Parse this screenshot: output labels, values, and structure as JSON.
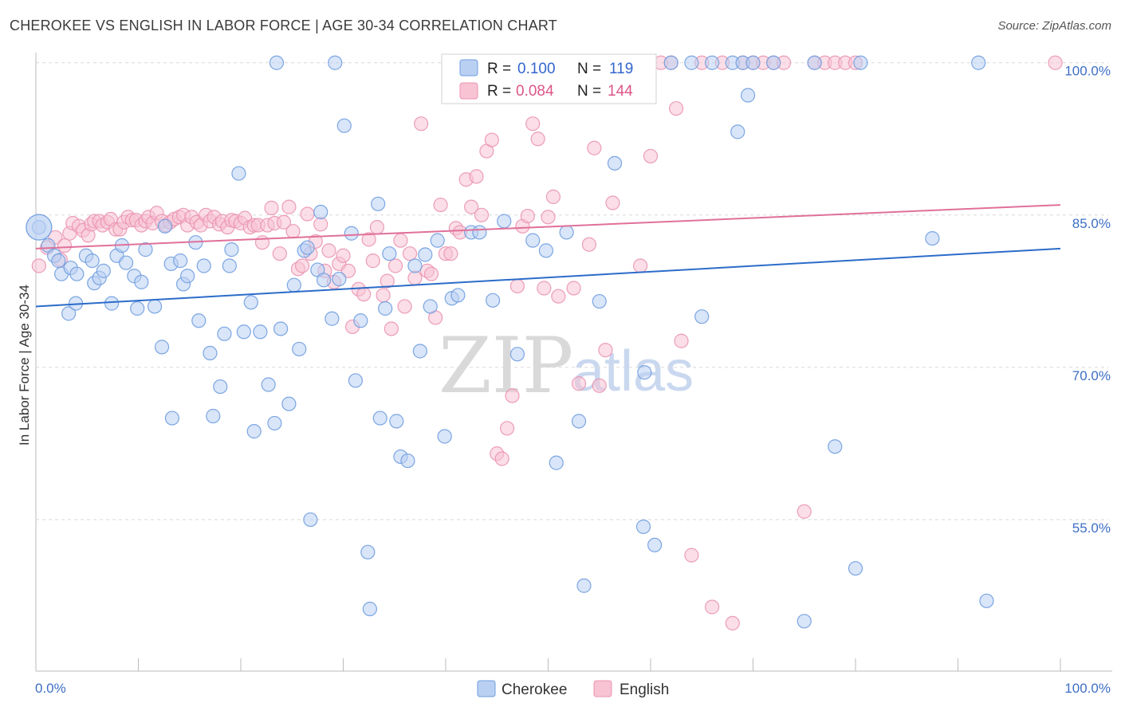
{
  "title": "CHEROKEE VS ENGLISH IN LABOR FORCE | AGE 30-34 CORRELATION CHART",
  "source": "Source: ZipAtlas.com",
  "watermark": {
    "zip": "ZIP",
    "atlas": "atlas"
  },
  "colors": {
    "cherokee_fill": "#b9d0f2",
    "cherokee_stroke": "#6f9de0",
    "cherokee_line": "#2b6cc9",
    "english_fill": "#f8c3d3",
    "english_stroke": "#ea93b1",
    "english_line": "#e0709a",
    "grid": "#d9d9d9",
    "axis_label": "#3d6fc4"
  },
  "stats": [
    {
      "series": "Cherokee",
      "r_label": "R =",
      "r": "0.100",
      "n_label": "N =",
      "n": "119"
    },
    {
      "series": "English",
      "r_label": "R =",
      "r": "0.084",
      "n_label": "N =",
      "n": "144"
    }
  ],
  "chart_data": {
    "type": "scatter",
    "title": "CHEROKEE VS ENGLISH IN LABOR FORCE | AGE 30-34 CORRELATION CHART",
    "xlabel": "",
    "ylabel": "In Labor Force | Age 30-34",
    "xlim": [
      0,
      100
    ],
    "ylim": [
      40,
      101
    ],
    "x_tick_labels": [
      "0.0%",
      "100.0%"
    ],
    "y_ticks": [
      55,
      70,
      85,
      100
    ],
    "y_tick_labels": [
      "55.0%",
      "70.0%",
      "85.0%",
      "100.0%"
    ],
    "legend": [
      "Cherokee",
      "English"
    ],
    "legend_position": "bottom-center",
    "series": [
      {
        "name": "Cherokee",
        "trend": {
          "x": [
            0,
            100
          ],
          "y": [
            76.0,
            81.7
          ]
        },
        "points": [
          [
            0.3,
            83.8
          ],
          [
            1.2,
            82.0
          ],
          [
            1.8,
            81.0
          ],
          [
            2.2,
            80.5
          ],
          [
            2.5,
            79.2
          ],
          [
            3.4,
            79.8
          ],
          [
            3.2,
            75.3
          ],
          [
            3.9,
            76.3
          ],
          [
            4.0,
            79.2
          ],
          [
            4.9,
            81.0
          ],
          [
            5.5,
            80.5
          ],
          [
            5.7,
            78.3
          ],
          [
            6.2,
            78.8
          ],
          [
            6.6,
            79.5
          ],
          [
            7.4,
            76.3
          ],
          [
            7.9,
            81.0
          ],
          [
            8.4,
            82.0
          ],
          [
            8.8,
            80.3
          ],
          [
            9.6,
            79.0
          ],
          [
            9.9,
            75.8
          ],
          [
            10.3,
            78.4
          ],
          [
            10.7,
            81.6
          ],
          [
            11.6,
            76.0
          ],
          [
            12.3,
            72.0
          ],
          [
            12.6,
            83.9
          ],
          [
            13.2,
            80.2
          ],
          [
            13.3,
            65.0
          ],
          [
            14.1,
            80.5
          ],
          [
            14.4,
            78.2
          ],
          [
            14.8,
            79.0
          ],
          [
            15.6,
            82.3
          ],
          [
            15.9,
            74.6
          ],
          [
            16.4,
            80.0
          ],
          [
            17.0,
            71.4
          ],
          [
            17.3,
            65.2
          ],
          [
            18.0,
            68.1
          ],
          [
            18.4,
            73.3
          ],
          [
            18.9,
            80.0
          ],
          [
            19.1,
            81.6
          ],
          [
            19.8,
            89.1
          ],
          [
            20.3,
            73.5
          ],
          [
            21.0,
            76.4
          ],
          [
            21.3,
            63.7
          ],
          [
            21.9,
            73.5
          ],
          [
            22.7,
            68.3
          ],
          [
            23.3,
            64.5
          ],
          [
            23.5,
            100.0
          ],
          [
            23.9,
            73.8
          ],
          [
            24.7,
            66.4
          ],
          [
            25.2,
            78.1
          ],
          [
            25.7,
            71.8
          ],
          [
            26.2,
            81.5
          ],
          [
            26.5,
            81.8
          ],
          [
            26.8,
            55.0
          ],
          [
            27.5,
            79.6
          ],
          [
            27.8,
            85.3
          ],
          [
            28.1,
            78.6
          ],
          [
            28.9,
            74.8
          ],
          [
            29.2,
            100.0
          ],
          [
            29.6,
            78.7
          ],
          [
            30.1,
            93.8
          ],
          [
            30.8,
            83.2
          ],
          [
            31.2,
            68.7
          ],
          [
            31.7,
            74.6
          ],
          [
            32.4,
            51.8
          ],
          [
            32.6,
            46.2
          ],
          [
            33.4,
            86.1
          ],
          [
            33.6,
            65.0
          ],
          [
            34.1,
            75.8
          ],
          [
            34.5,
            81.2
          ],
          [
            35.2,
            64.7
          ],
          [
            35.6,
            61.2
          ],
          [
            36.3,
            60.8
          ],
          [
            37.0,
            80.0
          ],
          [
            37.5,
            71.6
          ],
          [
            38.0,
            81.1
          ],
          [
            38.5,
            76.0
          ],
          [
            39.2,
            82.5
          ],
          [
            39.9,
            63.2
          ],
          [
            40.6,
            76.8
          ],
          [
            41.2,
            77.1
          ],
          [
            42.5,
            83.3
          ],
          [
            43.3,
            83.3
          ],
          [
            44.6,
            76.6
          ],
          [
            45.7,
            84.4
          ],
          [
            47.0,
            71.3
          ],
          [
            48.5,
            82.5
          ],
          [
            49.8,
            81.5
          ],
          [
            50.8,
            60.6
          ],
          [
            51.8,
            83.3
          ],
          [
            53.0,
            64.7
          ],
          [
            53.5,
            48.5
          ],
          [
            55.0,
            76.5
          ],
          [
            56.5,
            90.1
          ],
          [
            59.3,
            54.3
          ],
          [
            59.4,
            69.5
          ],
          [
            60.4,
            52.5
          ],
          [
            62.0,
            100.0
          ],
          [
            64.0,
            100.0
          ],
          [
            65.0,
            75.0
          ],
          [
            66.0,
            100.0
          ],
          [
            68.0,
            100.0
          ],
          [
            68.5,
            93.2
          ],
          [
            69.0,
            100.0
          ],
          [
            69.5,
            96.8
          ],
          [
            70.0,
            100.0
          ],
          [
            72.0,
            100.0
          ],
          [
            75.0,
            45.0
          ],
          [
            76.0,
            100.0
          ],
          [
            78.0,
            62.2
          ],
          [
            80.0,
            50.2
          ],
          [
            80.5,
            100.0
          ],
          [
            87.5,
            82.7
          ],
          [
            92.0,
            100.0
          ],
          [
            92.8,
            47.0
          ]
        ]
      },
      {
        "name": "English",
        "trend": {
          "x": [
            0,
            100
          ],
          "y": [
            81.7,
            86.0
          ]
        },
        "points": [
          [
            0.3,
            80.0
          ],
          [
            1.1,
            81.8
          ],
          [
            1.9,
            82.8
          ],
          [
            2.4,
            80.6
          ],
          [
            2.8,
            82.0
          ],
          [
            3.3,
            83.2
          ],
          [
            3.6,
            84.2
          ],
          [
            4.2,
            83.9
          ],
          [
            4.6,
            83.5
          ],
          [
            5.1,
            83.0
          ],
          [
            5.4,
            84.1
          ],
          [
            5.7,
            84.4
          ],
          [
            6.2,
            84.4
          ],
          [
            6.5,
            84.0
          ],
          [
            7.0,
            84.3
          ],
          [
            7.3,
            84.6
          ],
          [
            7.8,
            83.6
          ],
          [
            8.2,
            83.6
          ],
          [
            8.6,
            84.3
          ],
          [
            9.0,
            84.8
          ],
          [
            9.4,
            84.5
          ],
          [
            9.8,
            84.5
          ],
          [
            10.3,
            84.0
          ],
          [
            10.7,
            84.4
          ],
          [
            11.0,
            84.8
          ],
          [
            11.4,
            84.2
          ],
          [
            11.8,
            85.2
          ],
          [
            12.3,
            84.4
          ],
          [
            12.7,
            84.0
          ],
          [
            13.1,
            84.3
          ],
          [
            13.5,
            84.6
          ],
          [
            14.0,
            84.8
          ],
          [
            14.4,
            85.0
          ],
          [
            14.8,
            84.0
          ],
          [
            15.2,
            84.8
          ],
          [
            15.7,
            84.3
          ],
          [
            16.1,
            84.0
          ],
          [
            16.6,
            85.0
          ],
          [
            17.0,
            84.4
          ],
          [
            17.4,
            84.8
          ],
          [
            17.9,
            84.1
          ],
          [
            18.2,
            84.4
          ],
          [
            18.7,
            83.8
          ],
          [
            19.1,
            84.5
          ],
          [
            19.5,
            84.4
          ],
          [
            20.0,
            84.2
          ],
          [
            20.4,
            84.7
          ],
          [
            20.9,
            83.8
          ],
          [
            21.3,
            84.0
          ],
          [
            21.7,
            84.0
          ],
          [
            22.1,
            82.3
          ],
          [
            22.6,
            84.0
          ],
          [
            23.0,
            85.7
          ],
          [
            23.3,
            84.2
          ],
          [
            23.8,
            81.2
          ],
          [
            24.2,
            84.3
          ],
          [
            24.7,
            85.8
          ],
          [
            25.1,
            83.4
          ],
          [
            25.6,
            79.7
          ],
          [
            26.0,
            80.0
          ],
          [
            26.5,
            85.1
          ],
          [
            26.8,
            81.2
          ],
          [
            27.3,
            82.4
          ],
          [
            27.8,
            84.1
          ],
          [
            28.2,
            79.5
          ],
          [
            28.6,
            81.5
          ],
          [
            29.1,
            78.4
          ],
          [
            29.6,
            80.2
          ],
          [
            30.0,
            81.0
          ],
          [
            30.5,
            79.5
          ],
          [
            30.9,
            74.0
          ],
          [
            31.5,
            77.7
          ],
          [
            32.0,
            77.2
          ],
          [
            32.5,
            82.6
          ],
          [
            32.9,
            80.5
          ],
          [
            33.3,
            83.8
          ],
          [
            33.9,
            77.1
          ],
          [
            34.3,
            78.5
          ],
          [
            34.7,
            73.8
          ],
          [
            35.1,
            80.0
          ],
          [
            35.6,
            82.5
          ],
          [
            36.0,
            76.0
          ],
          [
            36.5,
            81.2
          ],
          [
            37.0,
            78.8
          ],
          [
            37.6,
            94.0
          ],
          [
            38.2,
            79.5
          ],
          [
            38.6,
            79.2
          ],
          [
            39.0,
            74.9
          ],
          [
            39.5,
            86.0
          ],
          [
            40.0,
            81.2
          ],
          [
            40.5,
            81.2
          ],
          [
            41.0,
            83.7
          ],
          [
            41.4,
            83.3
          ],
          [
            42.0,
            88.5
          ],
          [
            42.5,
            85.8
          ],
          [
            43.0,
            88.8
          ],
          [
            43.5,
            85.0
          ],
          [
            44.0,
            91.3
          ],
          [
            44.5,
            92.4
          ],
          [
            45.0,
            61.5
          ],
          [
            45.5,
            61.0
          ],
          [
            46.0,
            64.0
          ],
          [
            46.5,
            67.2
          ],
          [
            47.0,
            78.0
          ],
          [
            47.5,
            83.9
          ],
          [
            48.0,
            84.9
          ],
          [
            48.5,
            94.0
          ],
          [
            49.0,
            92.5
          ],
          [
            49.6,
            77.8
          ],
          [
            50.0,
            84.8
          ],
          [
            50.5,
            86.8
          ],
          [
            51.0,
            77.0
          ],
          [
            51.5,
            100.0
          ],
          [
            52.0,
            100.0
          ],
          [
            52.5,
            77.8
          ],
          [
            53.0,
            68.4
          ],
          [
            53.5,
            100.0
          ],
          [
            54.0,
            82.1
          ],
          [
            54.5,
            91.6
          ],
          [
            55.0,
            68.2
          ],
          [
            55.6,
            71.7
          ],
          [
            56.3,
            86.2
          ],
          [
            57.0,
            100.0
          ],
          [
            58.0,
            100.0
          ],
          [
            59.0,
            80.0
          ],
          [
            60.0,
            90.8
          ],
          [
            61.0,
            100.0
          ],
          [
            62.0,
            100.0
          ],
          [
            62.5,
            95.5
          ],
          [
            63.0,
            72.6
          ],
          [
            64.0,
            51.5
          ],
          [
            65.0,
            100.0
          ],
          [
            66.0,
            46.4
          ],
          [
            67.0,
            100.0
          ],
          [
            68.0,
            44.8
          ],
          [
            69.0,
            100.0
          ],
          [
            70.0,
            100.0
          ],
          [
            71.0,
            100.0
          ],
          [
            72.0,
            100.0
          ],
          [
            73.0,
            100.0
          ],
          [
            75.0,
            55.8
          ],
          [
            76.0,
            100.0
          ],
          [
            77.0,
            100.0
          ],
          [
            78.0,
            100.0
          ],
          [
            79.0,
            100.0
          ],
          [
            80.0,
            100.0
          ],
          [
            99.5,
            100.0
          ]
        ]
      }
    ]
  }
}
